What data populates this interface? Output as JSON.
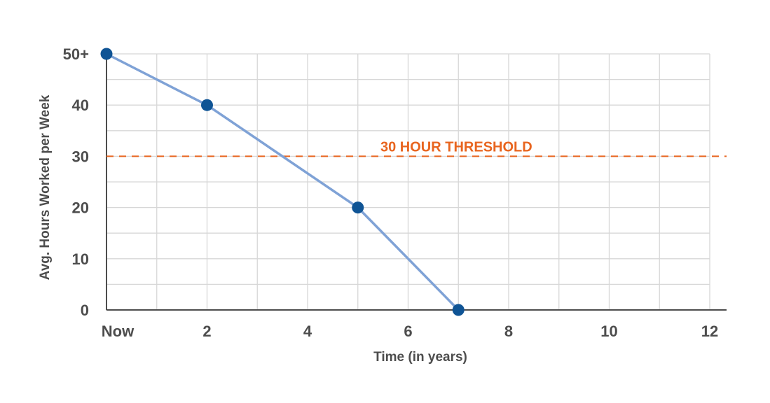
{
  "chart_data": {
    "type": "line",
    "xlabel": "Time (in years)",
    "ylabel": "Avg. Hours Worked per Week",
    "x_ticks": [
      {
        "value": 0,
        "label": "Now"
      },
      {
        "value": 2,
        "label": "2"
      },
      {
        "value": 4,
        "label": "4"
      },
      {
        "value": 6,
        "label": "6"
      },
      {
        "value": 8,
        "label": "8"
      },
      {
        "value": 10,
        "label": "10"
      },
      {
        "value": 12,
        "label": "12"
      }
    ],
    "y_ticks": [
      {
        "value": 0,
        "label": "0"
      },
      {
        "value": 10,
        "label": "10"
      },
      {
        "value": 20,
        "label": "20"
      },
      {
        "value": 30,
        "label": "30"
      },
      {
        "value": 40,
        "label": "40"
      },
      {
        "value": 50,
        "label": "50+"
      }
    ],
    "xlim": [
      0,
      12.3
    ],
    "ylim": [
      0,
      50
    ],
    "grid": true,
    "series": [
      {
        "x": [
          0,
          2,
          5,
          7
        ],
        "y": [
          50,
          40,
          20,
          0
        ],
        "color": "#7fa2d6",
        "marker_color": "#0f5495"
      }
    ],
    "threshold": {
      "value": 30,
      "label": "30 HOUR THRESHOLD",
      "color": "#e8651f"
    }
  }
}
